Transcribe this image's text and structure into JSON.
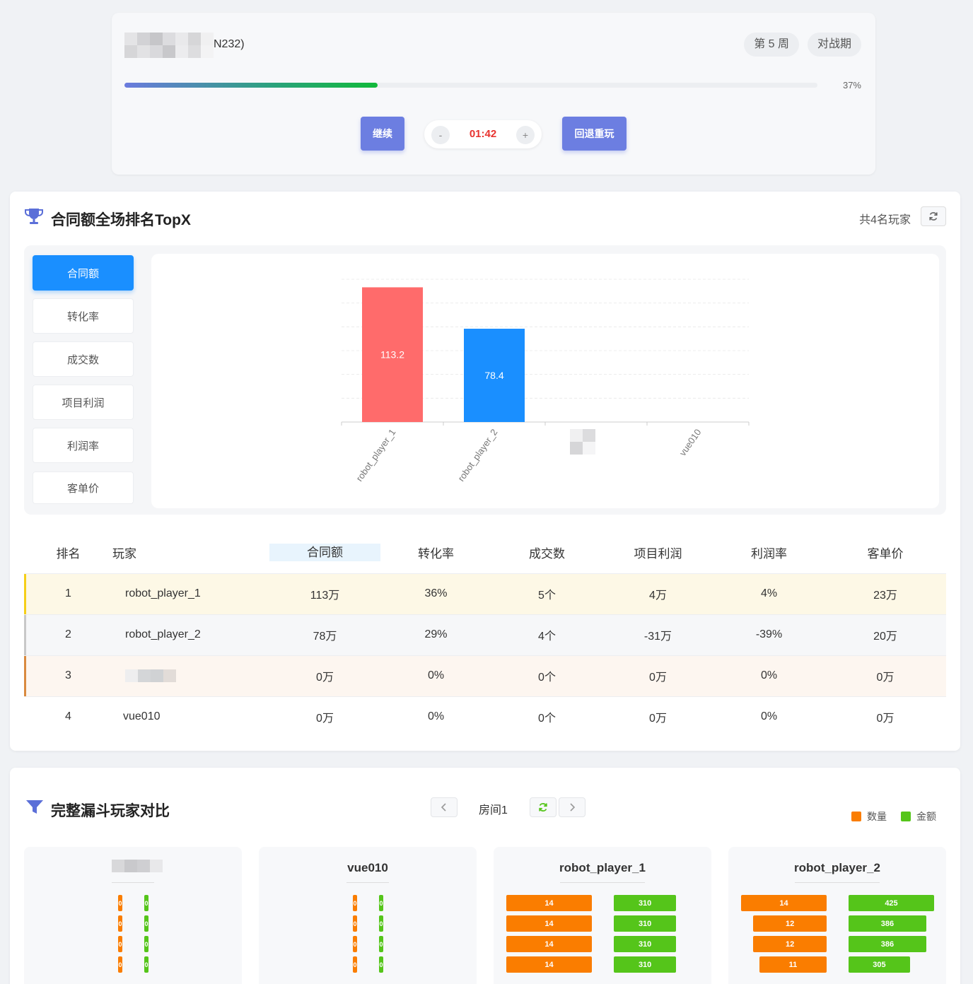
{
  "header": {
    "room_suffix": "N232)",
    "week_label": "第 5 周",
    "phase_label": "对战期",
    "progress": 37,
    "progress_label": "37%",
    "continue_label": "继续",
    "minus_label": "-",
    "plus_label": "+",
    "timer": "01:42",
    "rewind_label": "回退重玩"
  },
  "ranking": {
    "title": "合同额全场排名TopX",
    "players_count": "共4名玩家",
    "metrics": [
      "合同额",
      "转化率",
      "成交数",
      "项目利润",
      "利润率",
      "客单价"
    ],
    "active_metric": 0,
    "columns": [
      "排名",
      "玩家",
      "合同额",
      "转化率",
      "成交数",
      "项目利润",
      "利润率",
      "客单价"
    ],
    "rows": [
      {
        "rank": "1",
        "player": "robot_player_1",
        "cells": [
          "113万",
          "36%",
          "5个",
          "4万",
          "4%",
          "23万"
        ]
      },
      {
        "rank": "2",
        "player": "robot_player_2",
        "cells": [
          "78万",
          "29%",
          "4个",
          "-31万",
          "-39%",
          "20万"
        ]
      },
      {
        "rank": "3",
        "player": "",
        "cells": [
          "0万",
          "0%",
          "0个",
          "0万",
          "0%",
          "0万"
        ]
      },
      {
        "rank": "4",
        "player": "vue010",
        "cells": [
          "0万",
          "0%",
          "0个",
          "0万",
          "0%",
          "0万"
        ]
      }
    ]
  },
  "chart_data": {
    "type": "bar",
    "categories": [
      "robot_player_1",
      "robot_player_2",
      "",
      "vue010"
    ],
    "values": [
      113.2,
      78.4,
      0,
      0
    ],
    "colors": [
      "#ff6b6b",
      "#1a8fff",
      "#1a8fff",
      "#1a8fff"
    ],
    "ylim": [
      0,
      120
    ],
    "grid": true
  },
  "funnel": {
    "title": "完整漏斗玩家对比",
    "room_label": "房间1",
    "legend": [
      {
        "label": "数量",
        "color": "#fa7d00"
      },
      {
        "label": "金额",
        "color": "#55c51a"
      }
    ],
    "players": [
      {
        "name": "",
        "qty": [
          0,
          0,
          0,
          0
        ],
        "amt": [
          0,
          0,
          0,
          0
        ]
      },
      {
        "name": "vue010",
        "qty": [
          0,
          0,
          0,
          0
        ],
        "amt": [
          0,
          0,
          0,
          0
        ]
      },
      {
        "name": "robot_player_1",
        "qty": [
          14,
          14,
          14,
          14
        ],
        "amt": [
          310,
          310,
          310,
          310
        ]
      },
      {
        "name": "robot_player_2",
        "qty": [
          14,
          12,
          12,
          11
        ],
        "amt": [
          425,
          386,
          386,
          305
        ]
      }
    ]
  }
}
